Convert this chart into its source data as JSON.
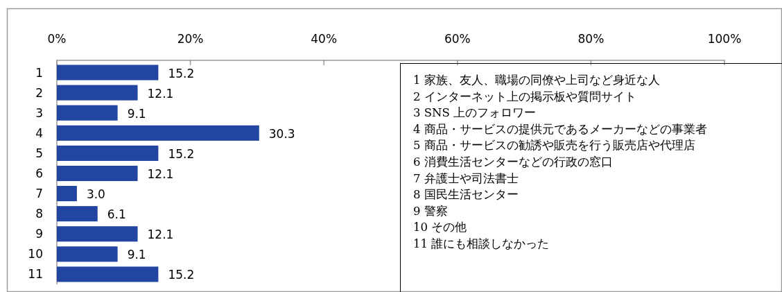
{
  "chart_data": {
    "type": "bar",
    "orientation": "horizontal",
    "categories": [
      "1",
      "2",
      "3",
      "4",
      "5",
      "6",
      "7",
      "8",
      "9",
      "10",
      "11"
    ],
    "values": [
      15.2,
      12.1,
      9.1,
      30.3,
      15.2,
      12.1,
      3.0,
      6.1,
      12.1,
      9.1,
      15.2
    ],
    "color": "#2145a0",
    "value_labels": [
      "15.2",
      "12.1",
      "9.1",
      "30.3",
      "15.2",
      "12.1",
      "3.0",
      "6.1",
      "12.1",
      "9.1",
      "15.2"
    ],
    "xlim": [
      0,
      100
    ],
    "xticks": [
      {
        "value": 0,
        "label": "0%"
      },
      {
        "value": 20,
        "label": "20%"
      },
      {
        "value": 40,
        "label": "40%"
      },
      {
        "value": 60,
        "label": "60%"
      },
      {
        "value": 80,
        "label": "80%"
      },
      {
        "value": 100,
        "label": "100%"
      }
    ],
    "grid": false,
    "annotations": [
      "1 家族、友人、職場の同僚や上司など身近な人",
      "2 インターネット上の掲示板や質問サイト",
      "3 SNS 上のフォロワー",
      "4 商品・サービスの提供元であるメーカーなどの事業者",
      "5 商品・サービスの勧誘や販売を行う販売店や代理店",
      "6 消費生活センターなどの行政の窓口",
      "7 弁護士や司法書士",
      "8 国民生活センター",
      "9 警察",
      "10 その他",
      "11 誰にも相談しなかった"
    ]
  }
}
